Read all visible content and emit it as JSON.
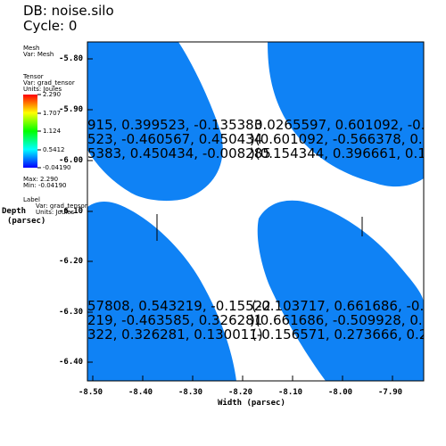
{
  "header": {
    "db": "DB: noise.silo",
    "cycle": "Cycle: 0"
  },
  "legend": {
    "mesh_title": "Mesh",
    "mesh_var": "Var: Mesh",
    "tensor_title": "Tensor",
    "tensor_var": "Var: grad_tensor",
    "tensor_units": "Units: Joules",
    "ticks": [
      "2.290",
      "1.707",
      "1.124",
      "0.5412",
      "-0.04190"
    ],
    "max": "Max: 2.290",
    "min": "Min: -0.04190",
    "label_title": "Label",
    "label_var": "Var: grad_tensor",
    "label_units": "Units: Joules"
  },
  "axes": {
    "ylabel_line1": "Depth",
    "ylabel_line2": "(parsec)",
    "xlabel": "Width (parsec)",
    "yticks": [
      "-5.80",
      "-5.90",
      "-6.00",
      "-6.10",
      "-6.20",
      "-6.30",
      "-6.40"
    ],
    "xticks": [
      "-8.50",
      "-8.40",
      "-8.30",
      "-8.20",
      "-8.10",
      "-8.00",
      "-7.90"
    ]
  },
  "colors": {
    "region_fill": "#0f82f5",
    "accent": "#000000"
  },
  "labels": {
    "top_left": [
      "915, 0.399523, -0.135383",
      "523, -0.460567, 0.450434",
      "5383, 0.450434, -0.008285"
    ],
    "top_right": [
      "0.0265597, 0.601092, -0.1",
      ")(0.601092, -0.566378, 0.39",
      ")(0.154344, 0.396661, 0.15"
    ],
    "bottom_left": [
      "57808, 0.543219, -0.15522",
      "219, -0.463585, 0.326281",
      "322, 0.326281, 0.130011)"
    ],
    "bottom_right": [
      "(-0.103717, 0.661686, -0.1",
      ")(0.661686, -0.509928, 0.27",
      "(-0.156571, 0.273666, 0.28"
    ]
  }
}
